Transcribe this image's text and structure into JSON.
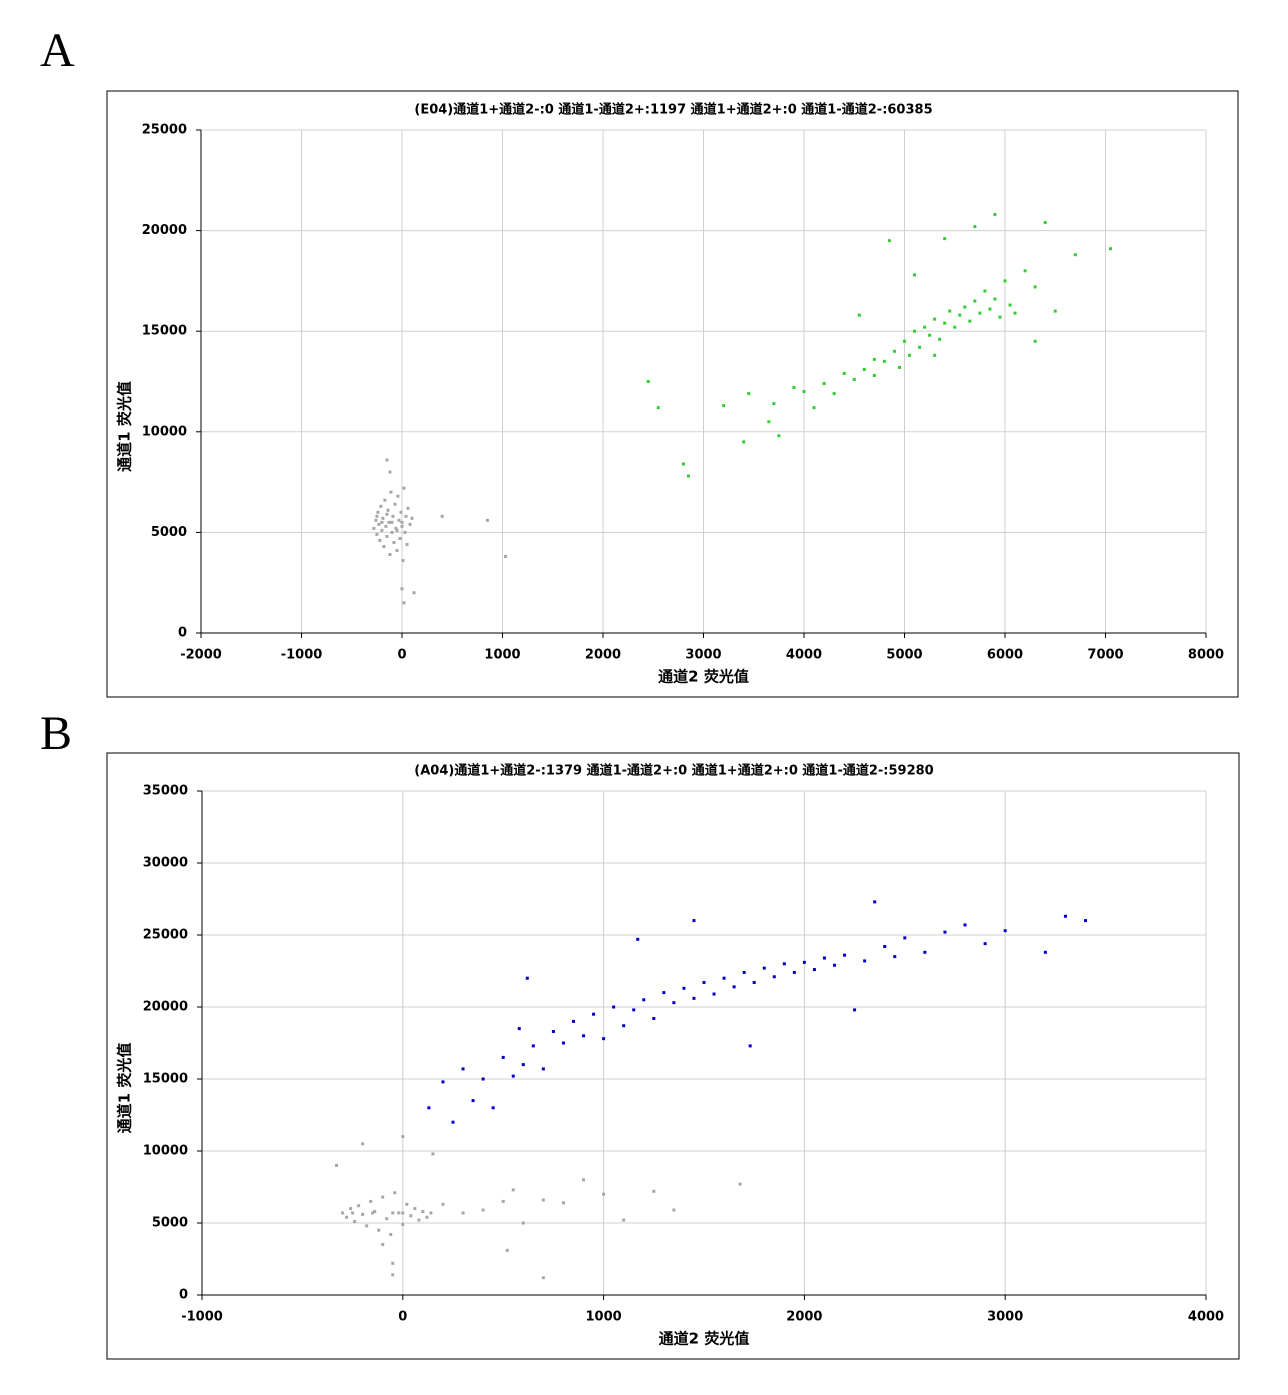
{
  "chart_data": [
    {
      "type": "scatter",
      "panel": "A",
      "title": "(E04)通道1+通道2-:0    通道1-通道2+:1197    通道1+通道2+:0    通道1-通道2-:60385",
      "xlabel": "通道2  荧光值",
      "ylabel": "通道1  荧光值",
      "xlim": [
        -2000,
        8000
      ],
      "xticks": [
        -2000,
        -1000,
        0,
        1000,
        2000,
        3000,
        4000,
        5000,
        6000,
        7000,
        8000
      ],
      "ylim": [
        0,
        25000
      ],
      "yticks": [
        0,
        5000,
        10000,
        15000,
        20000,
        25000
      ],
      "grid": true,
      "series": [
        {
          "color": "#a6a6a6",
          "x": [
            -280,
            -260,
            -250,
            -240,
            -230,
            -220,
            -210,
            -200,
            -190,
            -180,
            -170,
            -160,
            -150,
            -140,
            -130,
            -120,
            -110,
            -100,
            -90,
            -80,
            -70,
            -60,
            -50,
            -40,
            -30,
            -20,
            -10,
            0,
            10,
            20,
            30,
            40,
            50,
            60,
            80,
            100,
            -150,
            -120,
            0,
            20,
            120,
            400,
            850,
            1030,
            -200,
            -100,
            0,
            -150,
            -50,
            -250
          ],
          "values": [
            5200,
            5600,
            4900,
            6000,
            5400,
            4600,
            6300,
            5100,
            5700,
            4300,
            6600,
            5300,
            4800,
            6100,
            5500,
            3900,
            7000,
            5000,
            5800,
            4500,
            6400,
            5200,
            4100,
            6800,
            5600,
            4700,
            6000,
            5300,
            3600,
            7200,
            5000,
            5800,
            4400,
            6200,
            5400,
            5700,
            8600,
            8000,
            2200,
            1500,
            2000,
            5800,
            5600,
            3800,
            5500,
            5500,
            5500,
            5900,
            5100,
            5800
          ]
        },
        {
          "color": "#33cc33",
          "x": [
            2450,
            2550,
            2800,
            2850,
            3200,
            3400,
            3450,
            3650,
            3700,
            3750,
            3900,
            4000,
            4100,
            4200,
            4300,
            4400,
            4500,
            4550,
            4600,
            4700,
            4800,
            4850,
            4900,
            4950,
            5000,
            5050,
            5100,
            5150,
            5200,
            5250,
            5300,
            5350,
            5400,
            5450,
            5500,
            5550,
            5600,
            5650,
            5700,
            5750,
            5800,
            5850,
            5900,
            5950,
            6000,
            6050,
            6100,
            6200,
            6300,
            6400,
            6500,
            6700,
            7050,
            5900,
            5700,
            5400,
            5100,
            4700,
            5300,
            6300
          ],
          "values": [
            12500,
            11200,
            8400,
            7800,
            11300,
            9500,
            11900,
            10500,
            11400,
            9800,
            12200,
            12000,
            11200,
            12400,
            11900,
            12900,
            12600,
            15800,
            13100,
            12800,
            13500,
            19500,
            14000,
            13200,
            14500,
            13800,
            15000,
            14200,
            15200,
            14800,
            15600,
            14600,
            15400,
            16000,
            15200,
            15800,
            16200,
            15500,
            16500,
            15900,
            17000,
            16100,
            16600,
            15700,
            17500,
            16300,
            15900,
            18000,
            17200,
            20400,
            16000,
            18800,
            19100,
            20800,
            20200,
            19600,
            17800,
            13600,
            13800,
            14500
          ]
        }
      ]
    },
    {
      "type": "scatter",
      "panel": "B",
      "title": "(A04)通道1+通道2-:1379    通道1-通道2+:0    通道1+通道2+:0    通道1-通道2-:59280",
      "xlabel": "通道2  荧光值",
      "ylabel": "通道1  荧光值",
      "xlim": [
        -1000,
        4000
      ],
      "xticks": [
        -1000,
        0,
        1000,
        2000,
        3000,
        4000
      ],
      "ylim": [
        0,
        35000
      ],
      "yticks": [
        0,
        5000,
        10000,
        15000,
        20000,
        25000,
        30000,
        35000
      ],
      "grid": true,
      "series": [
        {
          "color": "#a6a6a6",
          "x": [
            -330,
            -300,
            -280,
            -260,
            -240,
            -220,
            -200,
            -180,
            -160,
            -140,
            -120,
            -100,
            -80,
            -60,
            -40,
            -20,
            0,
            20,
            40,
            60,
            80,
            100,
            120,
            140,
            -150,
            -50,
            -250,
            0,
            -100,
            -50,
            -200,
            0,
            150,
            200,
            300,
            400,
            500,
            550,
            600,
            700,
            800,
            900,
            1000,
            1100,
            1250,
            1350,
            1680,
            700,
            520,
            -50
          ],
          "values": [
            9000,
            5700,
            5400,
            6000,
            5100,
            6200,
            5600,
            4800,
            6500,
            5800,
            4500,
            6800,
            5300,
            4200,
            7100,
            5700,
            4900,
            6300,
            5500,
            6000,
            5200,
            5800,
            5400,
            5700,
            5700,
            5700,
            5700,
            5700,
            3500,
            2200,
            10500,
            11000,
            9800,
            6300,
            5700,
            5900,
            6500,
            7300,
            5000,
            6600,
            6400,
            8000,
            7000,
            5200,
            7200,
            5900,
            7700,
            1200,
            3100,
            1400
          ]
        },
        {
          "color": "#0000cc",
          "x": [
            130,
            200,
            250,
            300,
            350,
            400,
            450,
            500,
            550,
            580,
            600,
            620,
            650,
            700,
            750,
            800,
            850,
            900,
            950,
            1000,
            1050,
            1100,
            1150,
            1170,
            1200,
            1250,
            1300,
            1350,
            1400,
            1450,
            1450,
            1500,
            1550,
            1600,
            1650,
            1700,
            1730,
            1750,
            1800,
            1850,
            1900,
            1950,
            2000,
            2050,
            2100,
            2150,
            2200,
            2250,
            2300,
            2350,
            2400,
            2450,
            2500,
            2600,
            2700,
            2800,
            2900,
            3000,
            3200,
            3300,
            3400
          ],
          "values": [
            13000,
            14800,
            12000,
            15700,
            13500,
            15000,
            13000,
            16500,
            15200,
            18500,
            16000,
            22000,
            17300,
            15700,
            18300,
            17500,
            19000,
            18000,
            19500,
            17800,
            20000,
            18700,
            19800,
            24700,
            20500,
            19200,
            21000,
            20300,
            21300,
            26000,
            20600,
            21700,
            20900,
            22000,
            21400,
            22400,
            17300,
            21700,
            22700,
            22100,
            23000,
            22400,
            23100,
            22600,
            23400,
            22900,
            23600,
            19800,
            23200,
            27300,
            24200,
            23500,
            24800,
            23800,
            25200,
            25700,
            24400,
            25300,
            23800,
            26300,
            26000
          ]
        }
      ]
    }
  ]
}
